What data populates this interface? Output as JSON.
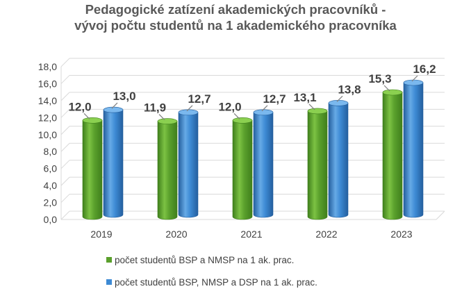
{
  "chart_data": {
    "type": "bar",
    "title_line1": "Pedagogické zatízení akademických pracovníků -",
    "title_line2": "vývoj počtu studentů na 1 akademického pracovníka",
    "categories": [
      "2019",
      "2020",
      "2021",
      "2022",
      "2023"
    ],
    "series": [
      {
        "name": "počet studentů BSP a NMSP na 1 ak. prac.",
        "color": "#5aa02c",
        "values": [
          12.0,
          11.9,
          12.0,
          13.1,
          15.3
        ],
        "labels": [
          "12,0",
          "11,9",
          "12,0",
          "13,1",
          "15,3"
        ]
      },
      {
        "name": "počet studentů BSP, NMSP a DSP na 1 ak. prac.",
        "color": "#3d8ad4",
        "values": [
          13.0,
          12.7,
          12.7,
          13.8,
          16.2
        ],
        "labels": [
          "13,0",
          "12,7",
          "12,7",
          "13,8",
          "16,2"
        ]
      }
    ],
    "ylim": [
      0,
      18
    ],
    "yticks": [
      "0,0",
      "2,0",
      "4,0",
      "6,0",
      "8,0",
      "10,0",
      "12,0",
      "14,0",
      "16,0",
      "18,0"
    ],
    "grid": true,
    "xlabel": "",
    "ylabel": "",
    "legend_position": "bottom"
  }
}
